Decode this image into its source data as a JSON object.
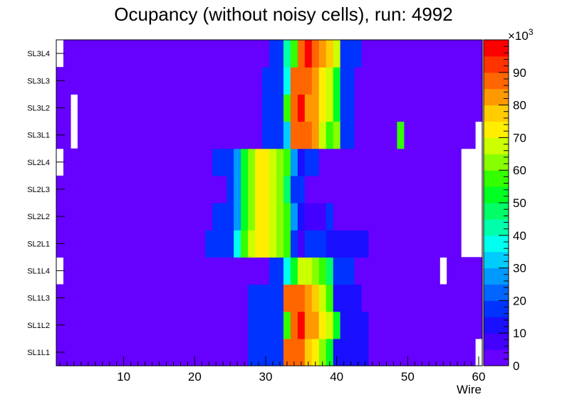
{
  "chart_data": {
    "type": "heatmap",
    "title": "Ocupancy (without noisy cells), run: 4992",
    "xlabel": "Wire",
    "ylabel": "",
    "xlim": [
      0.5,
      60.5
    ],
    "x_ticks": [
      "10",
      "20",
      "30",
      "40",
      "50",
      "60"
    ],
    "x_tick_values": [
      10,
      20,
      30,
      40,
      50,
      60
    ],
    "layers": [
      "SL1L1",
      "SL1L2",
      "SL1L3",
      "SL1L4",
      "SL2L1",
      "SL2L2",
      "SL2L3",
      "SL2L4",
      "SL3L1",
      "SL3L2",
      "SL3L3",
      "SL3L4"
    ],
    "colorbar": {
      "min": 0,
      "max": 100,
      "exponent_label": "×10",
      "exponent": "3",
      "ticks": [
        "0",
        "10",
        "20",
        "30",
        "40",
        "50",
        "60",
        "70",
        "80",
        "90"
      ],
      "tick_values": [
        0,
        10,
        20,
        30,
        40,
        50,
        60,
        70,
        80,
        90
      ],
      "palette": [
        "#6600ff",
        "#4400ff",
        "#1a0fff",
        "#0033ff",
        "#0066ff",
        "#0099ff",
        "#00ccff",
        "#00ffee",
        "#00ffaa",
        "#00ff66",
        "#00ff22",
        "#33ff00",
        "#88ff00",
        "#ccff00",
        "#ffee00",
        "#ffcc00",
        "#ff9900",
        "#ff6600",
        "#ff3300",
        "#ff0000"
      ]
    },
    "base_value": 2,
    "rows": [
      {
        "layer": "SL1L1",
        "peaks": [
          [
            28,
            15
          ],
          [
            29,
            15
          ],
          [
            30,
            15
          ],
          [
            31,
            15
          ],
          [
            32,
            15
          ],
          [
            33,
            85
          ],
          [
            34,
            85
          ],
          [
            35,
            85
          ],
          [
            36,
            75
          ],
          [
            37,
            70
          ],
          [
            38,
            60
          ],
          [
            39,
            50
          ],
          [
            40,
            12
          ],
          [
            41,
            12
          ],
          [
            42,
            12
          ],
          [
            43,
            12
          ],
          [
            44,
            12
          ]
        ],
        "empty": [
          60
        ]
      },
      {
        "layer": "SL1L2",
        "peaks": [
          [
            28,
            15
          ],
          [
            29,
            15
          ],
          [
            30,
            15
          ],
          [
            31,
            15
          ],
          [
            32,
            15
          ],
          [
            33,
            55
          ],
          [
            34,
            85
          ],
          [
            35,
            95
          ],
          [
            36,
            80
          ],
          [
            37,
            80
          ],
          [
            38,
            70
          ],
          [
            39,
            65
          ],
          [
            40,
            50
          ],
          [
            41,
            12
          ],
          [
            42,
            12
          ],
          [
            43,
            12
          ],
          [
            44,
            12
          ]
        ],
        "empty": []
      },
      {
        "layer": "SL1L3",
        "peaks": [
          [
            28,
            15
          ],
          [
            29,
            15
          ],
          [
            30,
            15
          ],
          [
            31,
            15
          ],
          [
            32,
            15
          ],
          [
            33,
            85
          ],
          [
            34,
            85
          ],
          [
            35,
            85
          ],
          [
            36,
            80
          ],
          [
            37,
            75
          ],
          [
            38,
            65
          ],
          [
            39,
            55
          ],
          [
            40,
            12
          ],
          [
            41,
            12
          ],
          [
            42,
            12
          ],
          [
            43,
            12
          ]
        ],
        "empty": []
      },
      {
        "layer": "SL1L4",
        "peaks": [
          [
            31,
            15
          ],
          [
            32,
            15
          ],
          [
            33,
            35
          ],
          [
            34,
            50
          ],
          [
            35,
            65
          ],
          [
            36,
            65
          ],
          [
            37,
            60
          ],
          [
            38,
            55
          ],
          [
            39,
            45
          ],
          [
            40,
            15
          ],
          [
            41,
            15
          ],
          [
            42,
            15
          ]
        ],
        "empty": [
          1,
          55
        ]
      },
      {
        "layer": "SL2L1",
        "peaks": [
          [
            22,
            15
          ],
          [
            23,
            15
          ],
          [
            24,
            15
          ],
          [
            25,
            15
          ],
          [
            26,
            35
          ],
          [
            27,
            55
          ],
          [
            28,
            65
          ],
          [
            29,
            70
          ],
          [
            30,
            72
          ],
          [
            31,
            68
          ],
          [
            32,
            62
          ],
          [
            33,
            58
          ],
          [
            34,
            15
          ],
          [
            35,
            5
          ],
          [
            36,
            15
          ],
          [
            37,
            15
          ],
          [
            38,
            15
          ],
          [
            39,
            12
          ],
          [
            40,
            12
          ],
          [
            41,
            12
          ],
          [
            42,
            12
          ],
          [
            43,
            12
          ],
          [
            44,
            12
          ]
        ],
        "empty": [
          58,
          59,
          60
        ]
      },
      {
        "layer": "SL2L2",
        "peaks": [
          [
            23,
            15
          ],
          [
            24,
            15
          ],
          [
            25,
            15
          ],
          [
            26,
            25
          ],
          [
            27,
            50
          ],
          [
            28,
            62
          ],
          [
            29,
            70
          ],
          [
            30,
            72
          ],
          [
            31,
            68
          ],
          [
            32,
            60
          ],
          [
            33,
            55
          ],
          [
            34,
            25
          ],
          [
            35,
            10
          ],
          [
            36,
            5
          ],
          [
            37,
            5
          ],
          [
            38,
            5
          ],
          [
            39,
            15
          ]
        ],
        "empty": [
          58,
          59,
          60
        ]
      },
      {
        "layer": "SL2L3",
        "peaks": [
          [
            25,
            15
          ],
          [
            26,
            25
          ],
          [
            27,
            50
          ],
          [
            28,
            62
          ],
          [
            29,
            70
          ],
          [
            30,
            72
          ],
          [
            31,
            68
          ],
          [
            32,
            60
          ],
          [
            33,
            45
          ],
          [
            34,
            15
          ],
          [
            35,
            15
          ]
        ],
        "empty": [
          58,
          59,
          60
        ]
      },
      {
        "layer": "SL2L4",
        "peaks": [
          [
            23,
            15
          ],
          [
            24,
            15
          ],
          [
            25,
            15
          ],
          [
            26,
            25
          ],
          [
            27,
            50
          ],
          [
            28,
            62
          ],
          [
            29,
            70
          ],
          [
            30,
            72
          ],
          [
            31,
            68
          ],
          [
            32,
            60
          ],
          [
            33,
            55
          ],
          [
            34,
            25
          ],
          [
            35,
            10
          ],
          [
            36,
            15
          ],
          [
            37,
            15
          ]
        ],
        "empty": [
          1,
          58,
          59,
          60
        ]
      },
      {
        "layer": "SL3L1",
        "peaks": [
          [
            30,
            15
          ],
          [
            31,
            15
          ],
          [
            32,
            15
          ],
          [
            33,
            30
          ],
          [
            34,
            85
          ],
          [
            35,
            85
          ],
          [
            36,
            85
          ],
          [
            37,
            80
          ],
          [
            38,
            65
          ],
          [
            39,
            55
          ],
          [
            40,
            60
          ],
          [
            41,
            15
          ],
          [
            42,
            15
          ],
          [
            49,
            55
          ]
        ],
        "empty": [
          3,
          60
        ]
      },
      {
        "layer": "SL3L2",
        "peaks": [
          [
            30,
            15
          ],
          [
            31,
            15
          ],
          [
            32,
            15
          ],
          [
            33,
            55
          ],
          [
            34,
            85
          ],
          [
            35,
            95
          ],
          [
            36,
            80
          ],
          [
            37,
            80
          ],
          [
            38,
            70
          ],
          [
            39,
            65
          ],
          [
            40,
            50
          ],
          [
            41,
            15
          ],
          [
            42,
            15
          ]
        ],
        "empty": [
          3
        ]
      },
      {
        "layer": "SL3L3",
        "peaks": [
          [
            30,
            15
          ],
          [
            31,
            15
          ],
          [
            32,
            15
          ],
          [
            33,
            35
          ],
          [
            34,
            85
          ],
          [
            35,
            85
          ],
          [
            36,
            85
          ],
          [
            37,
            80
          ],
          [
            38,
            70
          ],
          [
            39,
            65
          ],
          [
            40,
            50
          ],
          [
            41,
            15
          ],
          [
            42,
            15
          ]
        ],
        "empty": []
      },
      {
        "layer": "SL3L4",
        "peaks": [
          [
            31,
            15
          ],
          [
            32,
            15
          ],
          [
            33,
            40
          ],
          [
            34,
            55
          ],
          [
            35,
            85
          ],
          [
            36,
            95
          ],
          [
            37,
            85
          ],
          [
            38,
            80
          ],
          [
            39,
            75
          ],
          [
            40,
            65
          ],
          [
            41,
            15
          ],
          [
            42,
            15
          ],
          [
            43,
            15
          ]
        ],
        "empty": [
          1
        ]
      }
    ]
  }
}
